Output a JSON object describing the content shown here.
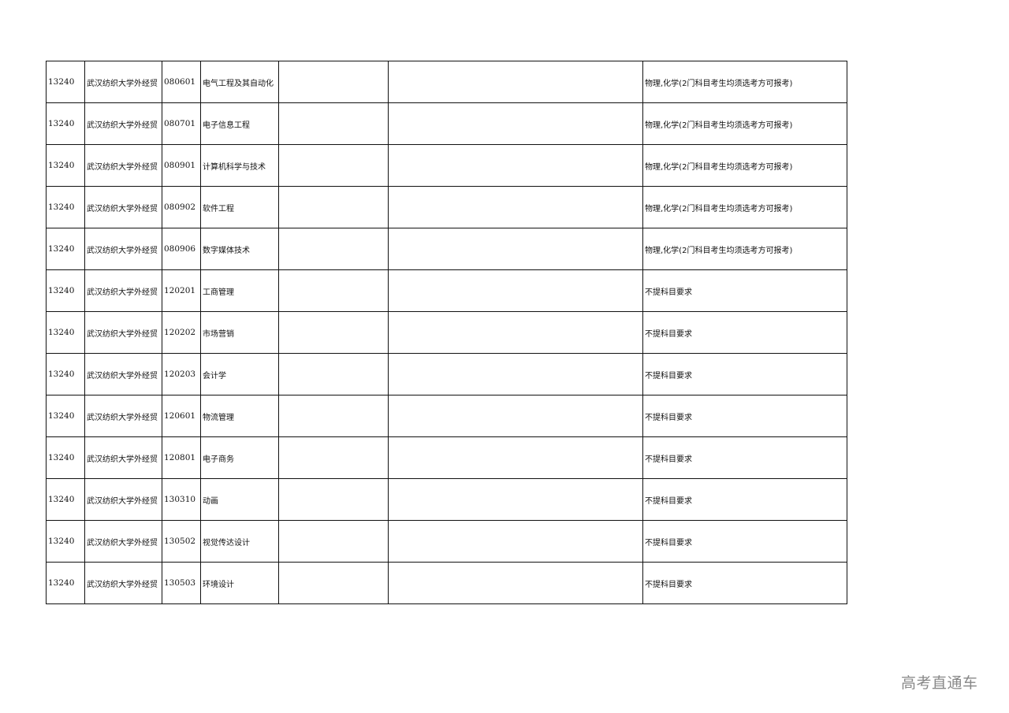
{
  "rows": [
    {
      "code": "13240",
      "school": "武汉纺织大学外经贸",
      "major_code": "080601",
      "major": "电气工程及其自动化",
      "c5": "",
      "c6": "",
      "requirement": "物理,化学(2门科目考生均须选考方可报考)"
    },
    {
      "code": "13240",
      "school": "武汉纺织大学外经贸",
      "major_code": "080701",
      "major": "电子信息工程",
      "c5": "",
      "c6": "",
      "requirement": "物理,化学(2门科目考生均须选考方可报考)"
    },
    {
      "code": "13240",
      "school": "武汉纺织大学外经贸",
      "major_code": "080901",
      "major": "计算机科学与技术",
      "c5": "",
      "c6": "",
      "requirement": "物理,化学(2门科目考生均须选考方可报考)"
    },
    {
      "code": "13240",
      "school": "武汉纺织大学外经贸",
      "major_code": "080902",
      "major": "软件工程",
      "c5": "",
      "c6": "",
      "requirement": "物理,化学(2门科目考生均须选考方可报考)"
    },
    {
      "code": "13240",
      "school": "武汉纺织大学外经贸",
      "major_code": "080906",
      "major": "数字媒体技术",
      "c5": "",
      "c6": "",
      "requirement": "物理,化学(2门科目考生均须选考方可报考)"
    },
    {
      "code": "13240",
      "school": "武汉纺织大学外经贸",
      "major_code": "120201",
      "major": "工商管理",
      "c5": "",
      "c6": "",
      "requirement": "不提科目要求"
    },
    {
      "code": "13240",
      "school": "武汉纺织大学外经贸",
      "major_code": "120202",
      "major": "市场营销",
      "c5": "",
      "c6": "",
      "requirement": "不提科目要求"
    },
    {
      "code": "13240",
      "school": "武汉纺织大学外经贸",
      "major_code": "120203",
      "major": "会计学",
      "c5": "",
      "c6": "",
      "requirement": "不提科目要求"
    },
    {
      "code": "13240",
      "school": "武汉纺织大学外经贸",
      "major_code": "120601",
      "major": "物流管理",
      "c5": "",
      "c6": "",
      "requirement": "不提科目要求"
    },
    {
      "code": "13240",
      "school": "武汉纺织大学外经贸",
      "major_code": "120801",
      "major": "电子商务",
      "c5": "",
      "c6": "",
      "requirement": "不提科目要求"
    },
    {
      "code": "13240",
      "school": "武汉纺织大学外经贸",
      "major_code": "130310",
      "major": "动画",
      "c5": "",
      "c6": "",
      "requirement": "不提科目要求"
    },
    {
      "code": "13240",
      "school": "武汉纺织大学外经贸",
      "major_code": "130502",
      "major": "视觉传达设计",
      "c5": "",
      "c6": "",
      "requirement": "不提科目要求"
    },
    {
      "code": "13240",
      "school": "武汉纺织大学外经贸",
      "major_code": "130503",
      "major": "环境设计",
      "c5": "",
      "c6": "",
      "requirement": "不提科目要求"
    }
  ],
  "watermark": "高考直通车"
}
